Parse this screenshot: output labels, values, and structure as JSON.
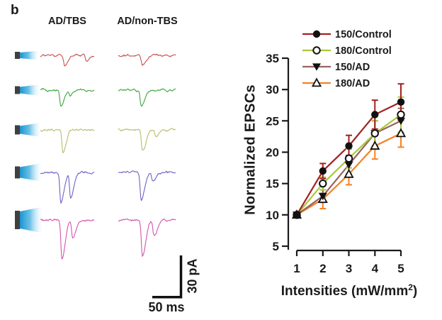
{
  "panel_label": "b",
  "left_panel": {
    "columns": [
      {
        "label": "AD/TBS"
      },
      {
        "label": "AD/non-TBS"
      }
    ],
    "stim_bar_color": "#3f3f3f",
    "beam_color": "#1B93D0",
    "rows": [
      {
        "name": "intensity-1",
        "color": "#C94F4F",
        "rect_h": 10,
        "beam_h": 13,
        "beam_len": 27,
        "amp": 15,
        "traces": [
          {
            "dips": [
              {
                "c": 0.45,
                "d": 1
              },
              {
                "c": 0.85,
                "d": 0.5
              }
            ]
          },
          {
            "dips": [
              {
                "c": 0.42,
                "d": 1
              }
            ]
          }
        ]
      },
      {
        "name": "intensity-2",
        "color": "#3DA53D",
        "rect_h": 11,
        "beam_h": 16,
        "beam_len": 28,
        "amp": 23,
        "traces": [
          {
            "dips": [
              {
                "c": 0.38,
                "d": 1
              },
              {
                "c": 0.55,
                "d": 0.3
              }
            ]
          },
          {
            "dips": [
              {
                "c": 0.4,
                "d": 1
              }
            ]
          }
        ]
      },
      {
        "name": "intensity-3",
        "color": "#B9BC6A",
        "rect_h": 13,
        "beam_h": 20,
        "beam_len": 30,
        "amp": 31,
        "traces": [
          {
            "dips": [
              {
                "c": 0.42,
                "d": 1
              }
            ]
          },
          {
            "dips": [
              {
                "c": 0.42,
                "d": 1
              },
              {
                "c": 0.65,
                "d": 0.3
              }
            ]
          }
        ]
      },
      {
        "name": "intensity-4",
        "color": "#6B63C4",
        "rect_h": 17,
        "beam_h": 26,
        "beam_len": 31,
        "amp": 42,
        "traces": [
          {
            "dips": [
              {
                "c": 0.38,
                "d": 1
              },
              {
                "c": 0.56,
                "d": 0.85
              }
            ]
          },
          {
            "dips": [
              {
                "c": 0.4,
                "d": 0.95
              },
              {
                "c": 0.6,
                "d": 0.3
              }
            ]
          }
        ]
      },
      {
        "name": "intensity-5",
        "color": "#D254AE",
        "rect_h": 26,
        "beam_h": 37,
        "beam_len": 32,
        "amp": 56,
        "traces": [
          {
            "dips": [
              {
                "c": 0.4,
                "d": 1
              },
              {
                "c": 0.6,
                "d": 0.45
              }
            ]
          },
          {
            "dips": [
              {
                "c": 0.42,
                "d": 0.95
              },
              {
                "c": 0.62,
                "d": 0.4
              }
            ]
          }
        ]
      }
    ],
    "scalebar": {
      "v_label": "30 pA",
      "h_label": "50 ms"
    }
  },
  "chart_data": {
    "type": "line",
    "title": "",
    "xlabel": "Intensities (mW/mm²)",
    "xlabel_parts": [
      "Intensities (mW/mm",
      "2",
      ")"
    ],
    "ylabel": "Normalized EPSCs",
    "x": [
      1,
      2,
      3,
      4,
      5
    ],
    "xticks": [
      "1",
      "2",
      "3",
      "4",
      "5"
    ],
    "yticks": [
      5,
      10,
      15,
      20,
      25,
      30,
      35
    ],
    "ylim": [
      5,
      35
    ],
    "legend_position": "top-right",
    "grid": false,
    "axis_color": "#1a1a1a",
    "series": [
      {
        "name": "150/Control",
        "marker": "filled-circle",
        "color": "#A32121",
        "marker_color": "#111111",
        "values": [
          10,
          17,
          21,
          26,
          28
        ],
        "errors": [
          0.3,
          1.2,
          1.7,
          2.3,
          2.9
        ]
      },
      {
        "name": "180/Control",
        "marker": "open-circle",
        "color": "#A9C938",
        "marker_color": "#111111",
        "values": [
          10,
          15,
          19,
          23,
          26
        ],
        "errors": [
          0.3,
          1.0,
          1.5,
          2.0,
          2.8
        ]
      },
      {
        "name": "150/AD",
        "marker": "filled-triangle-down",
        "color": "#9A6262",
        "marker_color": "#111111",
        "values": [
          10,
          13,
          18,
          23,
          25
        ],
        "errors": [
          0.3,
          1.0,
          1.5,
          2.0,
          2.0
        ]
      },
      {
        "name": "180/AD",
        "marker": "open-triangle-up",
        "color": "#F58225",
        "marker_color": "#111111",
        "values": [
          10,
          12.5,
          16.5,
          21,
          23
        ],
        "errors": [
          0.3,
          1.5,
          1.7,
          2.1,
          2.2
        ]
      }
    ]
  }
}
